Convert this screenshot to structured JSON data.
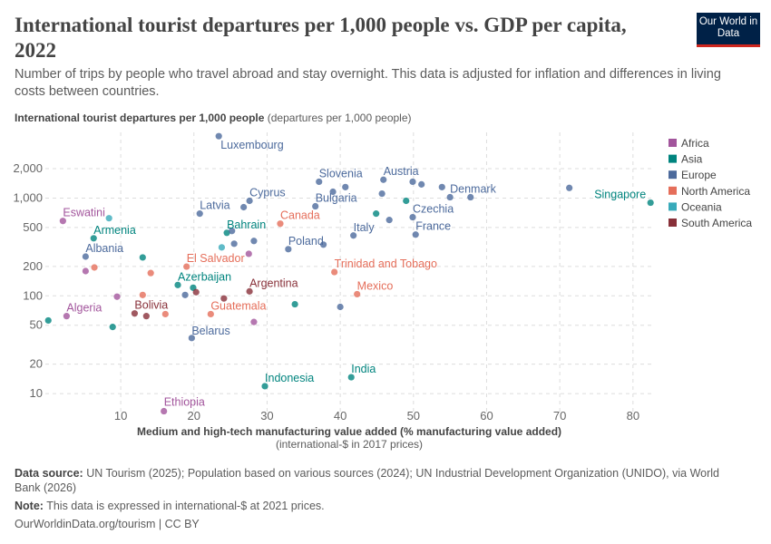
{
  "header": {
    "title": "International tourist departures per 1,000 people vs. GDP per capita, 2022",
    "subtitle": "Number of trips by people who travel abroad and stay overnight. This data is adjusted for inflation and differences in living costs between countries.",
    "logo": "Our World in Data"
  },
  "footer": {
    "source_label": "Data source:",
    "source": "UN Tourism (2025); Population based on various sources (2024); UN Industrial Development Organization (UNIDO), via World Bank (2026)",
    "note_label": "Note:",
    "note": "This data is expressed in international-$ at 2021 prices.",
    "url": "OurWorldinData.org/tourism | CC BY"
  },
  "chart_data": {
    "type": "scatter",
    "ylabel": "International tourist departures per 1,000 people",
    "ylabel_unit": "(departures per 1,000 people)",
    "xlabel": "Medium and high-tech manufacturing value added (% manufacturing value added)",
    "xlabel_sub": "(international-$ in 2017 prices)",
    "xlim": [
      -0.3,
      82.5
    ],
    "ylim": [
      6,
      4700
    ],
    "yscale": "log",
    "grid": true,
    "legend_position": "right",
    "x_ticks": [
      "10",
      "20",
      "30",
      "40",
      "50",
      "60",
      "70",
      "80"
    ],
    "y_ticks": [
      "10",
      "20",
      "50",
      "100",
      "200",
      "500",
      "1,000",
      "2,000"
    ],
    "series": [
      {
        "name": "Africa",
        "color": "#a2559c",
        "points": [
          {
            "x": 2.1,
            "y": 583,
            "label": "Eswatini"
          },
          {
            "x": 2.6,
            "y": 62,
            "label": "Algeria"
          },
          {
            "x": 15.9,
            "y": 6.6,
            "label": "Ethiopia"
          },
          {
            "x": 27.5,
            "y": 269
          },
          {
            "x": 5.2,
            "y": 179
          },
          {
            "x": 9.5,
            "y": 98
          },
          {
            "x": 28.2,
            "y": 54
          }
        ]
      },
      {
        "name": "Asia",
        "color": "#00847e",
        "points": [
          {
            "x": 82.4,
            "y": 897,
            "label": "Singapore"
          },
          {
            "x": 24.5,
            "y": 441,
            "label": "Bahrain"
          },
          {
            "x": 6.3,
            "y": 388,
            "label": "Armenia"
          },
          {
            "x": 17.8,
            "y": 129,
            "label": "Azerbaijan"
          },
          {
            "x": 29.7,
            "y": 11.9,
            "label": "Indonesia"
          },
          {
            "x": 41.5,
            "y": 14.7,
            "label": "India"
          },
          {
            "x": 49.0,
            "y": 937
          },
          {
            "x": 44.9,
            "y": 693
          },
          {
            "x": 13.0,
            "y": 247
          },
          {
            "x": 19.9,
            "y": 121
          },
          {
            "x": 33.8,
            "y": 82
          },
          {
            "x": 0.1,
            "y": 56
          },
          {
            "x": 8.9,
            "y": 48
          }
        ]
      },
      {
        "name": "Europe",
        "color": "#4c6a9c",
        "points": [
          {
            "x": 23.4,
            "y": 4300,
            "label": "Luxembourg"
          },
          {
            "x": 37.1,
            "y": 1470,
            "label": "Slovenia"
          },
          {
            "x": 45.9,
            "y": 1540,
            "label": "Austria"
          },
          {
            "x": 55.0,
            "y": 1020,
            "label": "Denmark"
          },
          {
            "x": 36.6,
            "y": 824,
            "label": "Bulgaria"
          },
          {
            "x": 27.6,
            "y": 937,
            "label": "Cyprus"
          },
          {
            "x": 20.8,
            "y": 693,
            "label": "Latvia"
          },
          {
            "x": 49.9,
            "y": 637,
            "label": "Czechia"
          },
          {
            "x": 41.8,
            "y": 414,
            "label": "Italy"
          },
          {
            "x": 50.3,
            "y": 423,
            "label": "France"
          },
          {
            "x": 32.9,
            "y": 300,
            "label": "Poland"
          },
          {
            "x": 5.2,
            "y": 252,
            "label": "Albania"
          },
          {
            "x": 19.7,
            "y": 37,
            "label": "Belarus"
          },
          {
            "x": 40.7,
            "y": 1295
          },
          {
            "x": 39.0,
            "y": 1160
          },
          {
            "x": 49.9,
            "y": 1470
          },
          {
            "x": 51.1,
            "y": 1380
          },
          {
            "x": 53.9,
            "y": 1295
          },
          {
            "x": 57.8,
            "y": 1020
          },
          {
            "x": 71.3,
            "y": 1270
          },
          {
            "x": 45.7,
            "y": 1110
          },
          {
            "x": 46.7,
            "y": 597
          },
          {
            "x": 37.7,
            "y": 334
          },
          {
            "x": 40.0,
            "y": 77
          },
          {
            "x": 26.8,
            "y": 807
          },
          {
            "x": 25.2,
            "y": 461
          },
          {
            "x": 28.2,
            "y": 364
          },
          {
            "x": 25.5,
            "y": 341
          },
          {
            "x": 18.8,
            "y": 102
          }
        ]
      },
      {
        "name": "North America",
        "color": "#e56e5a",
        "points": [
          {
            "x": 31.8,
            "y": 547,
            "label": "Canada"
          },
          {
            "x": 19.0,
            "y": 199,
            "label": "El Salvador"
          },
          {
            "x": 39.2,
            "y": 175,
            "label": "Trinidad and Tobago"
          },
          {
            "x": 42.3,
            "y": 104,
            "label": "Mexico"
          },
          {
            "x": 22.3,
            "y": 65,
            "label": "Guatemala"
          },
          {
            "x": 6.4,
            "y": 195
          },
          {
            "x": 14.1,
            "y": 171
          },
          {
            "x": 13.0,
            "y": 102
          },
          {
            "x": 16.1,
            "y": 65
          }
        ]
      },
      {
        "name": "Oceania",
        "color": "#38aaba",
        "points": [
          {
            "x": 8.4,
            "y": 622
          },
          {
            "x": 23.8,
            "y": 313
          }
        ]
      },
      {
        "name": "South America",
        "color": "#883039",
        "points": [
          {
            "x": 27.6,
            "y": 111,
            "label": "Argentina"
          },
          {
            "x": 11.9,
            "y": 66,
            "label": "Bolivia"
          },
          {
            "x": 20.3,
            "y": 109
          },
          {
            "x": 24.1,
            "y": 94
          },
          {
            "x": 13.5,
            "y": 62
          }
        ]
      }
    ]
  }
}
